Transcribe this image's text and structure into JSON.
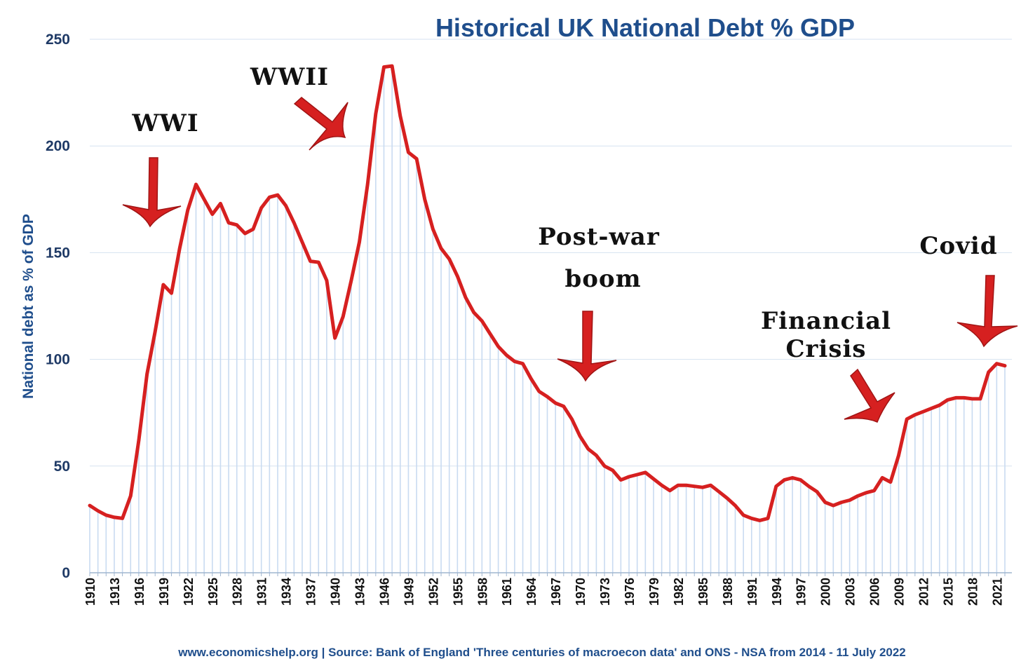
{
  "chart_data": {
    "type": "area",
    "title": "Historical UK National Debt % GDP",
    "xlabel": "",
    "ylabel": "National debt as % of GDP",
    "ylim": [
      0,
      250
    ],
    "yticks": [
      0,
      50,
      100,
      150,
      200,
      250
    ],
    "xlim": [
      1910,
      2022
    ],
    "xtick_labels": [
      "1910",
      "1913",
      "1916",
      "1919",
      "1922",
      "1925",
      "1928",
      "1931",
      "1934",
      "1937",
      "1940",
      "1943",
      "1946",
      "1949",
      "1952",
      "1955",
      "1958",
      "1961",
      "1964",
      "1967",
      "1970",
      "1973",
      "1976",
      "1979",
      "1982",
      "1985",
      "1988",
      "1991",
      "1994",
      "1997",
      "2000",
      "2003",
      "2006",
      "2009",
      "2012",
      "2015",
      "2018",
      "2021"
    ],
    "grid": true,
    "legend": "none",
    "line_color": "#d62020",
    "fill_color": "#c9dbf1",
    "series": [
      {
        "x": [
          1910,
          1911,
          1912,
          1913,
          1914,
          1915,
          1916,
          1917,
          1918,
          1919,
          1920,
          1921,
          1922,
          1923,
          1924,
          1925,
          1926,
          1927,
          1928,
          1929,
          1930,
          1931,
          1932,
          1933,
          1934,
          1935,
          1936,
          1937,
          1938,
          1939,
          1940,
          1941,
          1942,
          1943,
          1944,
          1945,
          1946,
          1947,
          1948,
          1949,
          1950,
          1951,
          1952,
          1953,
          1954,
          1955,
          1956,
          1957,
          1958,
          1959,
          1960,
          1961,
          1962,
          1963,
          1964,
          1965,
          1966,
          1967,
          1968,
          1969,
          1970,
          1971,
          1972,
          1973,
          1974,
          1975,
          1976,
          1977,
          1978,
          1979,
          1980,
          1981,
          1982,
          1983,
          1984,
          1985,
          1986,
          1987,
          1988,
          1989,
          1990,
          1991,
          1992,
          1993,
          1994,
          1995,
          1996,
          1997,
          1998,
          1999,
          2000,
          2001,
          2002,
          2003,
          2004,
          2005,
          2006,
          2007,
          2008,
          2009,
          2010,
          2011,
          2012,
          2013,
          2014,
          2015,
          2016,
          2017,
          2018,
          2019,
          2020,
          2021,
          2022
        ],
        "values": [
          31.5,
          29,
          27,
          26,
          25.5,
          36,
          62,
          93,
          113,
          135,
          131,
          152,
          170,
          182,
          175,
          168,
          173,
          164,
          163,
          159,
          161,
          171,
          176,
          177,
          172,
          164,
          155,
          146,
          145.5,
          137,
          110,
          120,
          137,
          155,
          182,
          215,
          237,
          237.5,
          214,
          197,
          194,
          175,
          161,
          152,
          147,
          139,
          129,
          122,
          118,
          112,
          106,
          102,
          99,
          98,
          91,
          85,
          82.5,
          79.5,
          78,
          72,
          64,
          58,
          55,
          50,
          48,
          43.5,
          45,
          46,
          47,
          44,
          41,
          38.5,
          41,
          41,
          40.5,
          40,
          41,
          38,
          35,
          31.5,
          27,
          25.5,
          24.5,
          25.5,
          40.5,
          43.5,
          44.5,
          43.5,
          40.5,
          38,
          33,
          31.5,
          33,
          34,
          36,
          37.5,
          38.5,
          44.5,
          42.5,
          55,
          72,
          74,
          75.5,
          77,
          78.5,
          81,
          82,
          82,
          81.5,
          81.5,
          94,
          98,
          97
        ]
      }
    ],
    "annotations": [
      {
        "label": "WWI"
      },
      {
        "label": "WWII"
      },
      {
        "label": "Post-war"
      },
      {
        "label": "boom"
      },
      {
        "label": "Financial"
      },
      {
        "label": "Crisis"
      },
      {
        "label": "Covid"
      }
    ],
    "source": "www.economicshelp.org | Source: Bank of England 'Three centuries of macroecon data' and ONS - NSA from 2014  - 11 July 2022"
  }
}
